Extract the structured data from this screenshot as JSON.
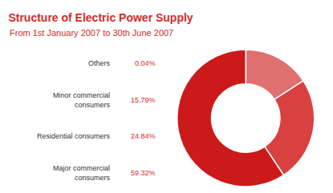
{
  "chart_data": {
    "type": "pie",
    "title": "Structure of Electric Power Supply",
    "subtitle": "From 1st January 2007 to 30th June 2007",
    "categories": [
      "Others",
      "Minor commercial\nconsumers",
      "Residential consumers",
      "Major commercial\nconsumers"
    ],
    "values": [
      0.04,
      15.79,
      24.84,
      59.32
    ],
    "value_labels": [
      "0.04%",
      "15.79%",
      "24.84%",
      "59.32%"
    ],
    "colors": [
      "#e8a898",
      "#e07070",
      "#d94040",
      "#cc1a1a"
    ],
    "data_labels": true
  }
}
